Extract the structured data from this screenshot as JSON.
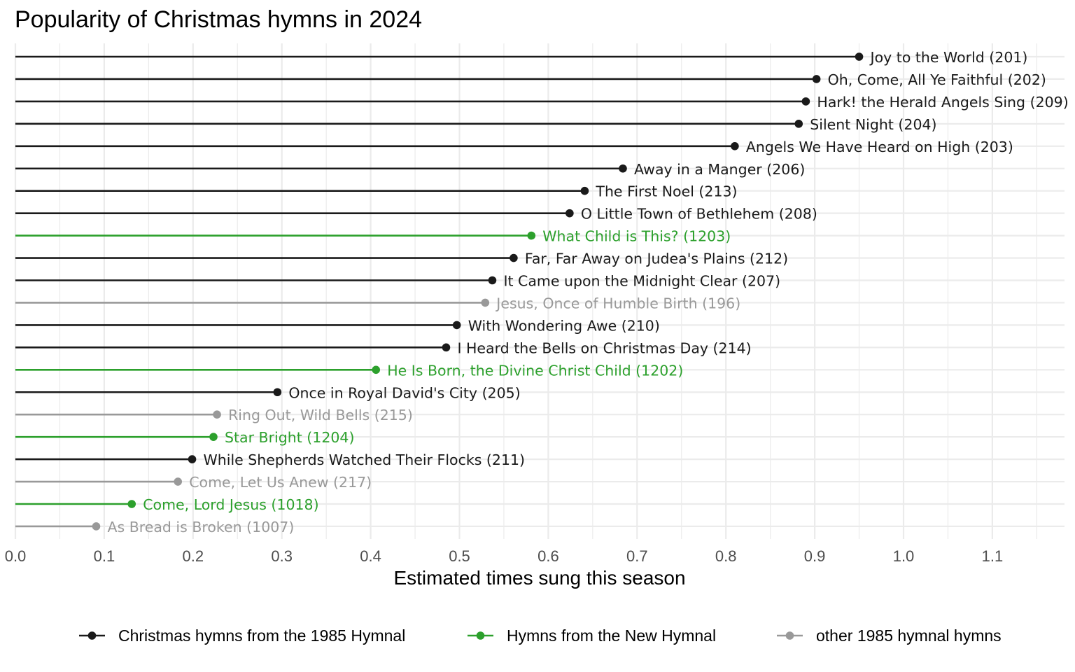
{
  "chart_data": {
    "type": "lollipop",
    "title": "Popularity of Christmas hymns in 2024",
    "xlabel": "Estimated times sung this season",
    "ylabel": "",
    "xlim": [
      0,
      1.18
    ],
    "x_ticks": [
      "0.0",
      "0.1",
      "0.2",
      "0.3",
      "0.4",
      "0.5",
      "0.6",
      "0.7",
      "0.8",
      "0.9",
      "1.0",
      "1.1"
    ],
    "grid": true,
    "legend_position": "bottom",
    "groups": [
      {
        "key": "c1985",
        "name": "Christmas hymns from the 1985 Hymnal",
        "color": "#1a1a1a"
      },
      {
        "key": "new",
        "name": "Hymns from the New Hymnal",
        "color": "#2ca02c"
      },
      {
        "key": "other",
        "name": "other 1985 hymnal hymns",
        "color": "#999999"
      }
    ],
    "points": [
      {
        "label": "Joy to the World (201)",
        "value": 0.95,
        "group": "c1985"
      },
      {
        "label": "Oh, Come, All Ye Faithful (202)",
        "value": 0.902,
        "group": "c1985"
      },
      {
        "label": "Hark! the Herald Angels Sing (209)",
        "value": 0.89,
        "group": "c1985"
      },
      {
        "label": "Silent Night (204)",
        "value": 0.882,
        "group": "c1985"
      },
      {
        "label": "Angels We Have Heard on High (203)",
        "value": 0.81,
        "group": "c1985"
      },
      {
        "label": "Away in a Manger (206)",
        "value": 0.684,
        "group": "c1985"
      },
      {
        "label": "The First Noel (213)",
        "value": 0.641,
        "group": "c1985"
      },
      {
        "label": "O Little Town of Bethlehem (208)",
        "value": 0.624,
        "group": "c1985"
      },
      {
        "label": "What Child is This? (1203)",
        "value": 0.581,
        "group": "new"
      },
      {
        "label": "Far, Far Away on Judea's Plains (212)",
        "value": 0.561,
        "group": "c1985"
      },
      {
        "label": "It Came upon the Midnight Clear (207)",
        "value": 0.537,
        "group": "c1985"
      },
      {
        "label": "Jesus, Once of Humble Birth (196)",
        "value": 0.529,
        "group": "other"
      },
      {
        "label": "With Wondering Awe (210)",
        "value": 0.497,
        "group": "c1985"
      },
      {
        "label": "I Heard the Bells on Christmas Day (214)",
        "value": 0.485,
        "group": "c1985"
      },
      {
        "label": "He Is Born, the Divine Christ Child (1202)",
        "value": 0.406,
        "group": "new"
      },
      {
        "label": "Once in Royal David's City (205)",
        "value": 0.295,
        "group": "c1985"
      },
      {
        "label": "Ring Out, Wild Bells (215)",
        "value": 0.227,
        "group": "other"
      },
      {
        "label": "Star Bright (1204)",
        "value": 0.223,
        "group": "new"
      },
      {
        "label": "While Shepherds Watched Their Flocks (211)",
        "value": 0.199,
        "group": "c1985"
      },
      {
        "label": "Come, Let Us Anew (217)",
        "value": 0.183,
        "group": "other"
      },
      {
        "label": "Come, Lord Jesus (1018)",
        "value": 0.131,
        "group": "new"
      },
      {
        "label": "As Bread is Broken (1007)",
        "value": 0.091,
        "group": "other"
      }
    ]
  }
}
